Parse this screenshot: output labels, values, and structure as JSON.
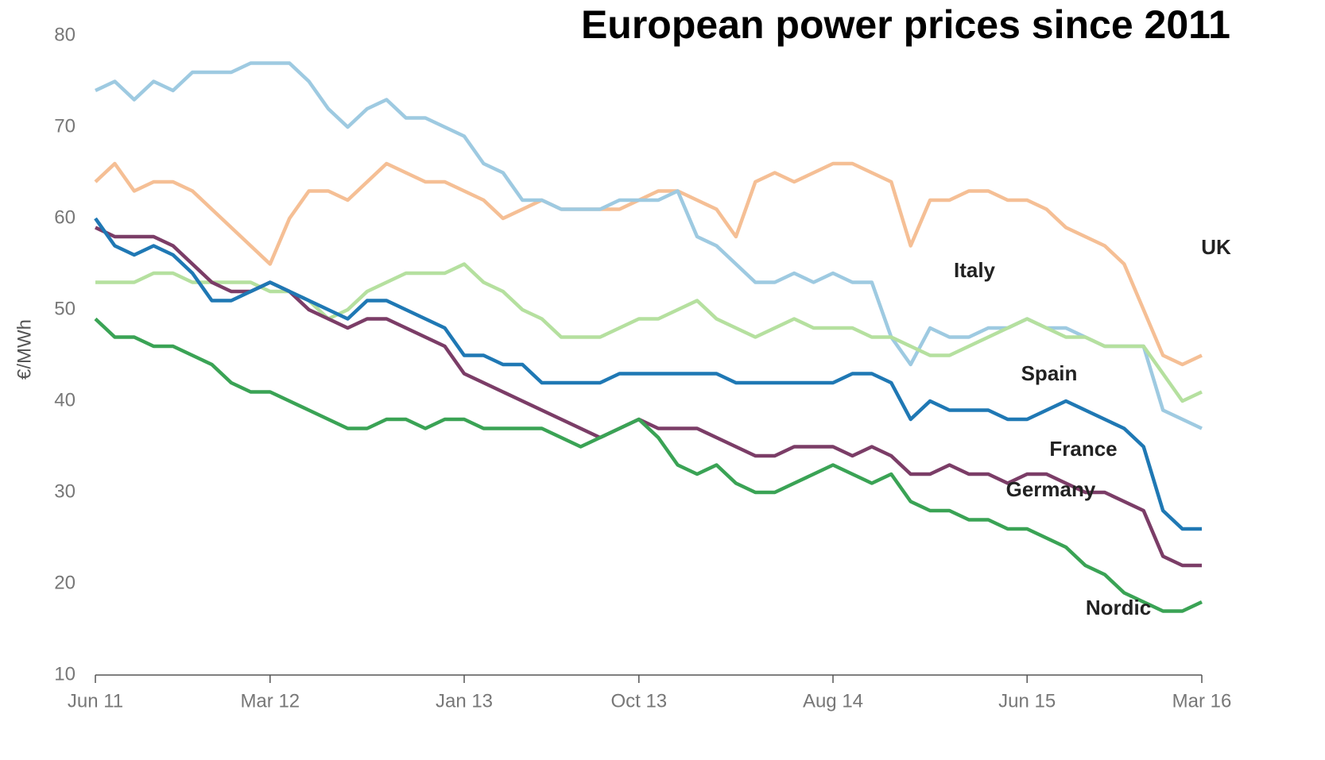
{
  "chart_data": {
    "type": "line",
    "title": "European power prices since 2011",
    "y_label": "€/MWh",
    "x": [
      "Jun 11",
      "Jul 11",
      "Aug 11",
      "Sep 11",
      "Oct 11",
      "Nov 11",
      "Dec 11",
      "Jan 12",
      "Feb 12",
      "Mar 12",
      "Apr 12",
      "May 12",
      "Jun 12",
      "Jul 12",
      "Aug 12",
      "Sep 12",
      "Oct 12",
      "Nov 12",
      "Dec 12",
      "Jan 13",
      "Feb 13",
      "Mar 13",
      "Apr 13",
      "May 13",
      "Jun 13",
      "Jul 13",
      "Aug 13",
      "Sep 13",
      "Oct 13",
      "Nov 13",
      "Dec 13",
      "Jan 14",
      "Feb 14",
      "Mar 14",
      "Apr 14",
      "May 14",
      "Jun 14",
      "Jul 14",
      "Aug 14",
      "Sep 14",
      "Oct 14",
      "Nov 14",
      "Dec 14",
      "Jan 15",
      "Feb 15",
      "Mar 15",
      "Apr 15",
      "May 15",
      "Jun 15",
      "Jul 15",
      "Aug 15",
      "Sep 15",
      "Oct 15",
      "Nov 15",
      "Dec 15",
      "Jan 16",
      "Feb 16",
      "Mar 16"
    ],
    "xticks": [
      "Jun 11",
      "Mar 12",
      "Jan 13",
      "Oct 13",
      "Aug 14",
      "Jun 15",
      "Mar 16"
    ],
    "ylim": [
      10,
      80
    ],
    "yticks": [
      10,
      20,
      30,
      40,
      50,
      60,
      70,
      80
    ],
    "grid": false,
    "series": [
      {
        "name": "UK",
        "color": "#9ecae1",
        "values": [
          74,
          75,
          73,
          75,
          74,
          76,
          76,
          76,
          77,
          77,
          77,
          75,
          72,
          70,
          72,
          73,
          71,
          71,
          70,
          69,
          66,
          65,
          62,
          62,
          61,
          61,
          61,
          62,
          62,
          62,
          63,
          58,
          57,
          55,
          53,
          53,
          54,
          53,
          54,
          53,
          53,
          47,
          44,
          48,
          47,
          47,
          48,
          48,
          49,
          48,
          48,
          47,
          46,
          46,
          46,
          39,
          38,
          37
        ]
      },
      {
        "name": "Italy",
        "color": "#f5bf95",
        "values": [
          64,
          66,
          63,
          64,
          64,
          63,
          61,
          59,
          57,
          55,
          60,
          63,
          63,
          62,
          64,
          66,
          65,
          64,
          64,
          63,
          62,
          60,
          61,
          62,
          61,
          61,
          61,
          61,
          62,
          63,
          63,
          62,
          61,
          58,
          64,
          65,
          64,
          65,
          66,
          66,
          65,
          64,
          57,
          62,
          62,
          63,
          63,
          62,
          62,
          61,
          59,
          58,
          57,
          55,
          50,
          45,
          44,
          45
        ]
      },
      {
        "name": "Spain",
        "color": "#b5e09f",
        "values": [
          53,
          53,
          53,
          54,
          54,
          53,
          53,
          53,
          53,
          52,
          52,
          51,
          49,
          50,
          52,
          53,
          54,
          54,
          54,
          55,
          53,
          52,
          50,
          49,
          47,
          47,
          47,
          48,
          49,
          49,
          50,
          51,
          49,
          48,
          47,
          48,
          49,
          48,
          48,
          48,
          47,
          47,
          46,
          45,
          45,
          46,
          47,
          48,
          49,
          48,
          47,
          47,
          46,
          46,
          46,
          43,
          40,
          41
        ]
      },
      {
        "name": "France",
        "color": "#1f78b4",
        "values": [
          60,
          57,
          56,
          57,
          56,
          54,
          51,
          51,
          52,
          53,
          52,
          51,
          50,
          49,
          51,
          51,
          50,
          49,
          48,
          45,
          45,
          44,
          44,
          42,
          42,
          42,
          42,
          43,
          43,
          43,
          43,
          43,
          43,
          42,
          42,
          42,
          42,
          42,
          42,
          43,
          43,
          42,
          38,
          40,
          39,
          39,
          39,
          38,
          38,
          39,
          40,
          39,
          38,
          37,
          35,
          28,
          26,
          26
        ]
      },
      {
        "name": "Germany",
        "color": "#7b3d67",
        "values": [
          59,
          58,
          58,
          58,
          57,
          55,
          53,
          52,
          52,
          53,
          52,
          50,
          49,
          48,
          49,
          49,
          48,
          47,
          46,
          43,
          42,
          41,
          40,
          39,
          38,
          37,
          36,
          37,
          38,
          37,
          37,
          37,
          36,
          35,
          34,
          34,
          35,
          35,
          35,
          34,
          35,
          34,
          32,
          32,
          33,
          32,
          32,
          31,
          32,
          32,
          31,
          30,
          30,
          29,
          28,
          23,
          22,
          22
        ]
      },
      {
        "name": "Nordic",
        "color": "#3aa355",
        "values": [
          49,
          47,
          47,
          46,
          46,
          45,
          44,
          42,
          41,
          41,
          40,
          39,
          38,
          37,
          37,
          38,
          38,
          37,
          38,
          38,
          37,
          37,
          37,
          37,
          36,
          35,
          36,
          37,
          38,
          36,
          33,
          32,
          33,
          31,
          30,
          30,
          31,
          32,
          33,
          32,
          31,
          32,
          29,
          28,
          28,
          27,
          27,
          26,
          26,
          25,
          24,
          22,
          21,
          19,
          18,
          17,
          17,
          18
        ]
      }
    ]
  }
}
